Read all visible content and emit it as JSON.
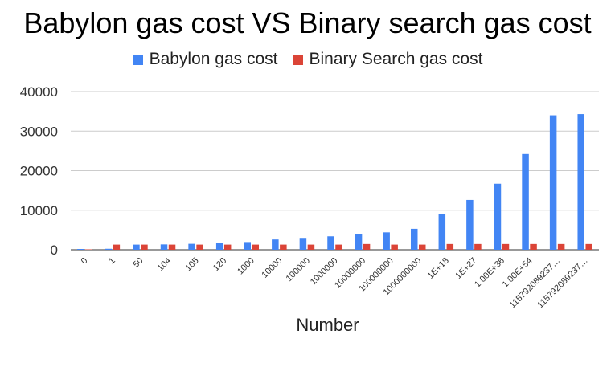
{
  "chart_data": {
    "type": "bar",
    "title": "Babylon gas cost VS Binary search gas cost",
    "xlabel": "Number",
    "ylabel": "",
    "ylim": [
      0,
      40000
    ],
    "yticks": [
      0,
      10000,
      20000,
      30000,
      40000
    ],
    "grid": true,
    "legend_position": "top",
    "categories": [
      "0",
      "1",
      "50",
      "104",
      "105",
      "120",
      "1000",
      "10000",
      "100000",
      "1000000",
      "10000000",
      "100000000",
      "1000000000",
      "1E+18",
      "1E+27",
      "1.00E+36",
      "1.00E+54",
      "115792089237…",
      "115792089237…"
    ],
    "series": [
      {
        "name": "Babylon gas cost",
        "color": "#4285f4",
        "values": [
          200,
          250,
          1300,
          1350,
          1500,
          1650,
          1950,
          2600,
          3000,
          3400,
          3900,
          4400,
          5300,
          9000,
          12600,
          16700,
          24200,
          34000,
          34300
        ]
      },
      {
        "name": "Binary Search gas cost",
        "color": "#db4437",
        "values": [
          100,
          1300,
          1300,
          1300,
          1300,
          1300,
          1300,
          1300,
          1300,
          1300,
          1450,
          1300,
          1300,
          1450,
          1450,
          1450,
          1450,
          1450,
          1450
        ]
      }
    ]
  }
}
